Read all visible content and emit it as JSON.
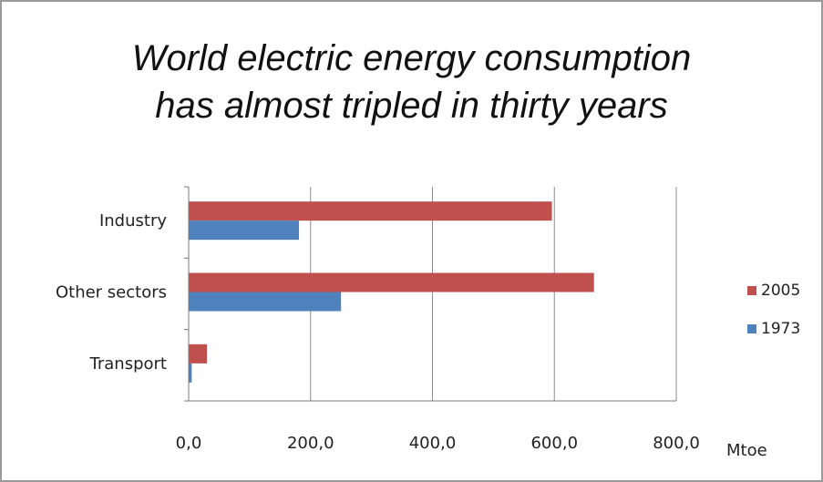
{
  "chart_data": {
    "type": "bar",
    "orientation": "horizontal",
    "title_lines": [
      "World electric energy consumption",
      "has almost tripled in thirty years"
    ],
    "categories": [
      "Industry",
      "Other sectors",
      "Transport"
    ],
    "series": [
      {
        "name": "2005",
        "color": "#c0504d",
        "values": [
          596,
          665,
          30
        ]
      },
      {
        "name": "1973",
        "color": "#4f81bd",
        "values": [
          181,
          250,
          5
        ]
      }
    ],
    "xlim": [
      0,
      800
    ],
    "ticks": [
      {
        "value": 0,
        "label": "0,0"
      },
      {
        "value": 200,
        "label": "200,0"
      },
      {
        "value": 400,
        "label": "400,0"
      },
      {
        "value": 600,
        "label": "600,0"
      },
      {
        "value": 800,
        "label": "800,0"
      }
    ],
    "xunit": "Mtoe",
    "grid": true,
    "legend_position": "right"
  }
}
